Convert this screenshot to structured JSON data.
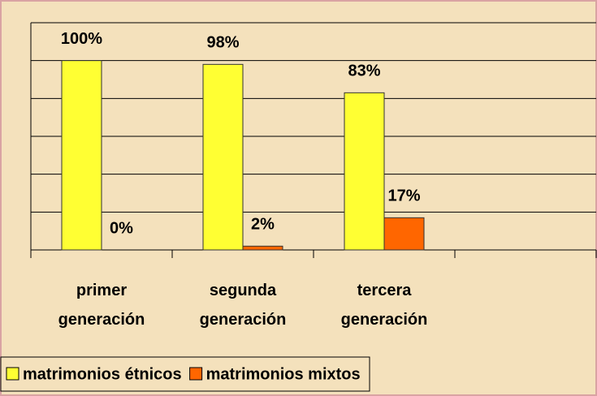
{
  "chart_data": {
    "type": "bar",
    "categories": [
      "primer generación",
      "segunda generación",
      "tercera generación",
      null
    ],
    "series": [
      {
        "name": "matrimonios étnicos",
        "color": "#ffff33",
        "values": [
          100,
          98,
          83,
          null
        ],
        "value_labels": [
          "100%",
          "98%",
          "83%",
          null
        ]
      },
      {
        "name": "matrimonios mixtos",
        "color": "#ff6600",
        "values": [
          0,
          2,
          17,
          null
        ],
        "value_labels": [
          "0%",
          "2%",
          "17%",
          null
        ]
      }
    ],
    "ylim": [
      0,
      120
    ],
    "yticks": [
      0,
      20,
      40,
      60,
      80,
      100,
      120
    ],
    "grid": true,
    "legend": "bottom-left"
  }
}
